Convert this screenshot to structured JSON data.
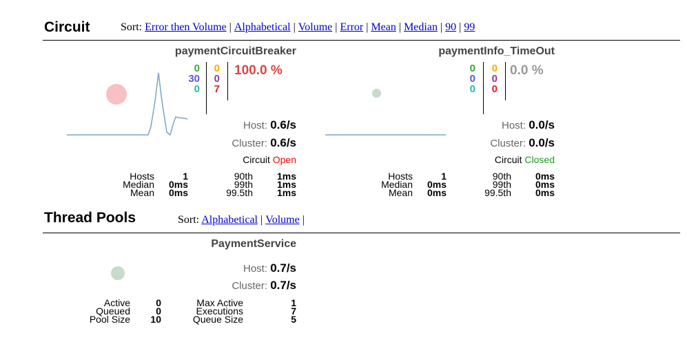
{
  "circuit_section": {
    "title": "Circuit",
    "sort_label": "Sort:",
    "sort_options": [
      "Error then Volume",
      "Alphabetical",
      "Volume",
      "Error",
      "Mean",
      "Median",
      "90",
      "99"
    ]
  },
  "circuits": [
    {
      "name": "paymentCircuitBreaker",
      "counts_col1": [
        "0",
        "30",
        "0"
      ],
      "counts_col2": [
        "0",
        "0",
        "7"
      ],
      "error_percent": "100.0 %",
      "host_label": "Host:",
      "host_rate": "0.6/s",
      "cluster_label": "Cluster:",
      "cluster_rate": "0.6/s",
      "circuit_label": "Circuit",
      "circuit_state": "Open",
      "stats": {
        "hosts_label": "Hosts",
        "hosts": "1",
        "median_label": "Median",
        "median": "0ms",
        "mean_label": "Mean",
        "mean": "0ms",
        "p90_label": "90th",
        "p90": "1ms",
        "p99_label": "99th",
        "p99": "1ms",
        "p995_label": "99.5th",
        "p995": "1ms"
      },
      "colors": {
        "circle": "#f8c0c0",
        "percent": "#dd4444",
        "state": "#ff0000"
      }
    },
    {
      "name": "paymentInfo_TimeOut",
      "counts_col1": [
        "0",
        "0",
        "0"
      ],
      "counts_col2": [
        "0",
        "0",
        "0"
      ],
      "error_percent": "0.0 %",
      "host_label": "Host:",
      "host_rate": "0.0/s",
      "cluster_label": "Cluster:",
      "cluster_rate": "0.0/s",
      "circuit_label": "Circuit",
      "circuit_state": "Closed",
      "stats": {
        "hosts_label": "Hosts",
        "hosts": "1",
        "median_label": "Median",
        "median": "0ms",
        "mean_label": "Mean",
        "mean": "0ms",
        "p90_label": "90th",
        "p90": "0ms",
        "p99_label": "99th",
        "p99": "0ms",
        "p995_label": "99.5th",
        "p995": "0ms"
      },
      "colors": {
        "circle": "#c6dbc9",
        "percent": "#999999",
        "state": "#229922"
      }
    }
  ],
  "count_colors": {
    "col1": [
      "#33aa33",
      "#5555ee",
      "#22bbaa"
    ],
    "col2": [
      "#ffaa00",
      "#993399",
      "#dd2222"
    ]
  },
  "thread_section": {
    "title": "Thread Pools",
    "sort_label": "Sort:",
    "sort_options": [
      "Alphabetical",
      "Volume"
    ]
  },
  "thread_pools": [
    {
      "name": "PaymentService",
      "host_label": "Host:",
      "host_rate": "0.7/s",
      "cluster_label": "Cluster:",
      "cluster_rate": "0.7/s",
      "stats": {
        "active_label": "Active",
        "active": "0",
        "queued_label": "Queued",
        "queued": "0",
        "pool_size_label": "Pool Size",
        "pool_size": "10",
        "max_active_label": "Max Active",
        "max_active": "1",
        "executions_label": "Executions",
        "executions": "7",
        "queue_size_label": "Queue Size",
        "queue_size": "5"
      },
      "colors": {
        "circle": "#c6dbc9"
      }
    }
  ]
}
